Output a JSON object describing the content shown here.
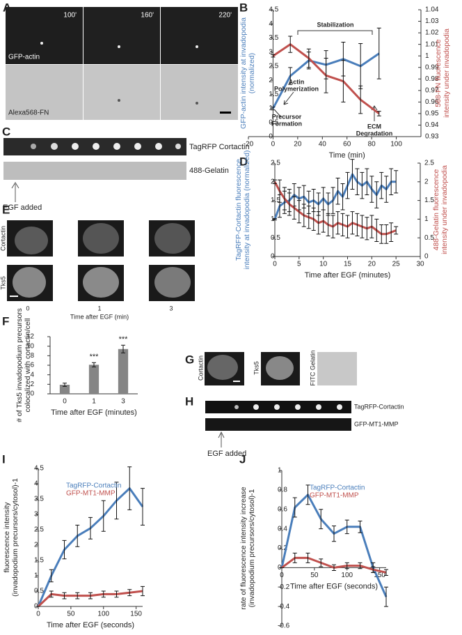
{
  "figure": {
    "panels": [
      "A",
      "B",
      "C",
      "D",
      "E",
      "F",
      "G",
      "H",
      "I",
      "J"
    ],
    "a": {
      "times": [
        "100'",
        "160'",
        "220'"
      ],
      "channels": [
        "GFP-actin",
        "Alexa568-FN"
      ]
    },
    "c": {
      "channels": [
        "TagRFP Cortactin",
        "488-Gelatin"
      ],
      "event": "EGF added"
    },
    "e": {
      "channels": [
        "Cortactin",
        "Tks5"
      ],
      "times": [
        "0",
        "1",
        "3"
      ],
      "x_label": "Time after EGF (min)"
    },
    "g": {
      "channels": [
        "Cortactin",
        "Tks5",
        "FITC Gelatin"
      ]
    },
    "h": {
      "channels": [
        "TagRFP-Cortactin",
        "GFP-MT1-MMP"
      ],
      "event": "EGF added"
    }
  },
  "chart_data": [
    {
      "type": "line",
      "x_label": "Time (min)",
      "y_label": [
        "GFP-actin intensity at invadopodia",
        "(normalized)"
      ],
      "y2_label": [
        "568-FN fluorescence",
        "intensity under invadopodia"
      ],
      "x": [
        0,
        14,
        29,
        43,
        57,
        71,
        86
      ],
      "xlim": [
        -20,
        120
      ],
      "xticks": [
        -20,
        0,
        20,
        40,
        60,
        80,
        100
      ],
      "ylim": [
        0,
        4.5
      ],
      "yticks": [
        0,
        0.5,
        1,
        1.5,
        2,
        2.5,
        3,
        3.5,
        4,
        4.5
      ],
      "y2lim": [
        0.93,
        1.04
      ],
      "y2ticks": [
        0.93,
        0.94,
        0.95,
        0.96,
        0.97,
        0.98,
        0.99,
        1,
        1.01,
        1.02,
        1.03,
        1.04
      ],
      "series": [
        {
          "color": "#4a7ebb",
          "values": [
            1,
            2.15,
            2.7,
            2.55,
            2.75,
            2.5,
            2.95
          ],
          "errors": [
            0.05,
            0.3,
            0.3,
            0.5,
            0.6,
            0.8,
            0.9
          ]
        },
        {
          "color": "#c0504d",
          "axis": "y2",
          "values": [
            1,
            1.01,
            0.998,
            0.983,
            0.978,
            0.962,
            0.95
          ],
          "errors": [
            0.001,
            0.007,
            0.008,
            0.015,
            0.018,
            0.012,
            0.002
          ]
        }
      ],
      "annotations": [
        {
          "text": [
            "Stabilization"
          ]
        },
        {
          "text": [
            "Actin",
            "Polymerization"
          ]
        },
        {
          "text": [
            "Precursor",
            "Formation"
          ]
        },
        {
          "text": [
            "ECM",
            "Degradation"
          ]
        }
      ]
    },
    {
      "type": "line",
      "x_label": "Time after EGF (minutes)",
      "y_label": [
        "TagRFP-Cortactin fluorescence",
        "intensity at invadopodia (normalized)"
      ],
      "y2_label": [
        "488-Gelatin fluorescence",
        "intensity under invadopodia"
      ],
      "x": [
        0,
        1,
        2,
        3,
        4,
        5,
        6,
        7,
        8,
        9,
        10,
        11,
        12,
        13,
        14,
        15,
        16,
        17,
        18,
        19,
        20,
        21,
        22,
        23,
        24,
        25
      ],
      "xlim": [
        0,
        30
      ],
      "xticks": [
        0,
        5,
        10,
        15,
        20,
        25,
        30
      ],
      "ylim": [
        0,
        2.5
      ],
      "yticks": [
        0,
        0.5,
        1,
        1.5,
        2,
        2.5
      ],
      "y2lim": [
        0,
        2.5
      ],
      "y2ticks": [
        0,
        0.5,
        1,
        1.5,
        2,
        2.5
      ],
      "series": [
        {
          "color": "#4a7ebb",
          "values": [
            1,
            1.35,
            1.45,
            1.5,
            1.65,
            1.55,
            1.6,
            1.45,
            1.5,
            1.4,
            1.55,
            1.4,
            1.5,
            1.75,
            1.6,
            1.9,
            2.2,
            2.0,
            1.9,
            2.0,
            1.8,
            1.65,
            1.9,
            1.8,
            2.0,
            2.0
          ],
          "errors": [
            0.02,
            0.3,
            0.3,
            0.3,
            0.3,
            0.3,
            0.3,
            0.3,
            0.3,
            0.3,
            0.3,
            0.3,
            0.35,
            0.35,
            0.35,
            0.35,
            0.4,
            0.35,
            0.35,
            0.35,
            0.35,
            0.35,
            0.35,
            0.35,
            0.35,
            0.3
          ]
        },
        {
          "color": "#c0504d",
          "axis": "y2",
          "values": [
            2.0,
            1.75,
            1.55,
            1.4,
            1.3,
            1.2,
            1.1,
            1.05,
            1.0,
            0.9,
            0.95,
            0.85,
            0.8,
            0.9,
            0.85,
            0.8,
            0.9,
            0.85,
            0.8,
            0.75,
            0.8,
            0.7,
            0.6,
            0.6,
            0.65,
            0.7
          ],
          "errors": [
            0.05,
            0.3,
            0.3,
            0.3,
            0.3,
            0.3,
            0.3,
            0.3,
            0.3,
            0.3,
            0.3,
            0.3,
            0.3,
            0.3,
            0.3,
            0.3,
            0.3,
            0.3,
            0.3,
            0.3,
            0.3,
            0.3,
            0.25,
            0.25,
            0.25,
            0.1
          ]
        }
      ]
    },
    {
      "type": "bar",
      "x_label": "Time after EGF (minutes)",
      "y_label": [
        "# of Tks5 invadopodium precursors",
        "colocalized with cortactin/cell"
      ],
      "categories": [
        "0",
        "1",
        "3"
      ],
      "values": [
        1.9,
        6.1,
        9.4
      ],
      "errors": [
        0.35,
        0.45,
        0.8
      ],
      "significance": [
        null,
        "***",
        "***"
      ],
      "color": "#858585",
      "ylim": [
        0,
        12
      ],
      "yticks": [
        0,
        2,
        4,
        6,
        8,
        10,
        12
      ]
    },
    {
      "type": "line",
      "x_label": "Time after EGF (seconds)",
      "y_label": [
        "fluorescence intensity",
        "(invadopodium precursors/cytosol)-1"
      ],
      "x": [
        0,
        20,
        40,
        60,
        80,
        100,
        120,
        140,
        160
      ],
      "xlim": [
        0,
        160
      ],
      "xticks": [
        0,
        50,
        100,
        150
      ],
      "ylim": [
        0,
        4.5
      ],
      "yticks": [
        0,
        0.5,
        1,
        1.5,
        2,
        2.5,
        3,
        3.5,
        4,
        4.5
      ],
      "series": [
        {
          "name": "TagRFP-Cortactin",
          "color": "#4a7ebb",
          "values": [
            0,
            1.0,
            1.85,
            2.3,
            2.55,
            2.95,
            3.45,
            3.85,
            3.25
          ],
          "errors": [
            0,
            0.2,
            0.3,
            0.35,
            0.35,
            0.5,
            0.6,
            0.7,
            0.6
          ]
        },
        {
          "name": "GFP-MT1-MMP",
          "color": "#c0504d",
          "values": [
            0,
            0.4,
            0.35,
            0.35,
            0.35,
            0.4,
            0.4,
            0.45,
            0.5
          ],
          "errors": [
            0,
            0.1,
            0.1,
            0.1,
            0.1,
            0.1,
            0.1,
            0.1,
            0.15
          ]
        }
      ]
    },
    {
      "type": "line",
      "x_label": "Time after EGF (seconds)",
      "y_label": [
        "rate of fluorescence intensity increase",
        "(invadopodium precursors/cytosol)-1"
      ],
      "x": [
        0,
        20,
        40,
        60,
        80,
        100,
        120,
        140,
        160
      ],
      "xlim": [
        0,
        160
      ],
      "xticks": [
        0,
        50,
        100,
        150
      ],
      "ylim": [
        -0.6,
        1
      ],
      "yticks": [
        -0.6,
        -0.4,
        -0.2,
        0,
        0.2,
        0.4,
        0.6,
        0.8,
        1
      ],
      "series": [
        {
          "name": "TagRFP-Cortactin",
          "color": "#4a7ebb",
          "values": [
            0,
            0.62,
            0.75,
            0.5,
            0.35,
            0.42,
            0.42,
            0.0,
            -0.3
          ],
          "errors": [
            0,
            0.1,
            0.1,
            0.1,
            0.08,
            0.07,
            0.06,
            0.05,
            0.1
          ]
        },
        {
          "name": "GFP-MT1-MMP",
          "color": "#c0504d",
          "values": [
            0,
            0.1,
            0.1,
            0.05,
            0.0,
            0.02,
            0.02,
            -0.02,
            -0.05
          ],
          "errors": [
            0,
            0.05,
            0.05,
            0.04,
            0.03,
            0.03,
            0.03,
            0.03,
            0.03
          ]
        }
      ]
    }
  ]
}
